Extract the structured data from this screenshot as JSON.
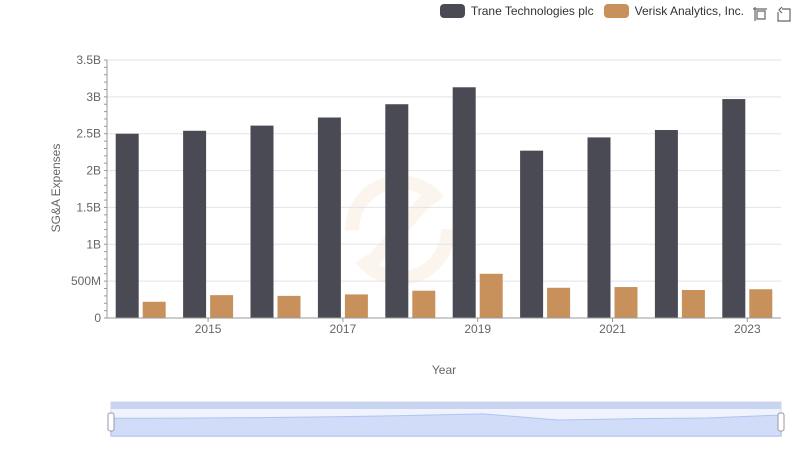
{
  "chart_data": {
    "type": "bar",
    "title": "",
    "xlabel": "Year",
    "ylabel": "SG&A Expenses",
    "categories": [
      "2014",
      "2015",
      "2016",
      "2017",
      "2018",
      "2019",
      "2020",
      "2021",
      "2022",
      "2023"
    ],
    "x_tick_labels": [
      "2015",
      "2017",
      "2019",
      "2021",
      "2023"
    ],
    "y_tick_labels": [
      "0",
      "500M",
      "1B",
      "1.5B",
      "2B",
      "2.5B",
      "3B",
      "3.5B"
    ],
    "ylim": [
      0,
      3500000000
    ],
    "grid": true,
    "legend_position": "top-right",
    "series": [
      {
        "name": "Trane Technologies plc",
        "color": "#4a4a55",
        "values": [
          2500000000,
          2540000000,
          2610000000,
          2720000000,
          2900000000,
          3130000000,
          2270000000,
          2450000000,
          2550000000,
          2970000000
        ]
      },
      {
        "name": "Verisk Analytics, Inc.",
        "color": "#c8915b",
        "values": [
          220000000,
          310000000,
          300000000,
          320000000,
          370000000,
          600000000,
          410000000,
          420000000,
          380000000,
          390000000
        ]
      }
    ]
  },
  "toolbox": {
    "zoom_icon": "zoom-icon",
    "restore_icon": "restore-icon"
  }
}
